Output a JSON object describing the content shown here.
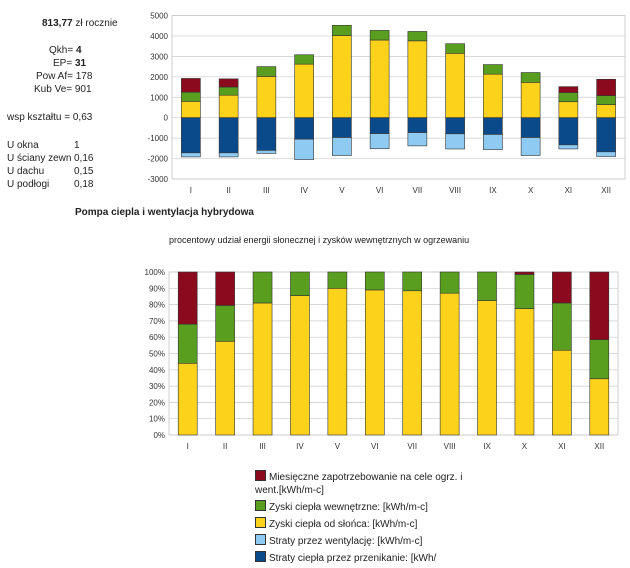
{
  "info": {
    "cost_value": "813,77",
    "cost_unit": "zł rocznie",
    "qkh_label": "Qkh=",
    "qkh_value": "4",
    "ep_label": "EP=",
    "ep_value": "31",
    "pow_label": "Pow Af=",
    "pow_value": "178",
    "kub_label": "Kub Ve=",
    "kub_value": "901",
    "wsp_label": "wsp kształtu =",
    "wsp_value": "0,63",
    "u_values": [
      {
        "label": "U okna",
        "value": "1"
      },
      {
        "label": "U ściany zewn",
        "value": "0,16"
      },
      {
        "label": "U dachu",
        "value": "0,15"
      },
      {
        "label": "U podłogi",
        "value": "0,18"
      }
    ]
  },
  "section_title": "Pompa ciepla i wentylacja hybrydowa",
  "colors": {
    "demand": "#8b0a1e",
    "internal": "#5a9e1f",
    "solar": "#fcd21b",
    "ventilation": "#8ecaf2",
    "transmission": "#0a4a8a"
  },
  "chart_data": [
    {
      "type": "bar",
      "stacked": true,
      "title": "",
      "categories": [
        "I",
        "II",
        "III",
        "IV",
        "V",
        "VI",
        "VII",
        "VIII",
        "IX",
        "X",
        "XI",
        "XII"
      ],
      "ylim": [
        -3000,
        5000
      ],
      "yticks": [
        "5000",
        "4000",
        "3000",
        "2000",
        "1000",
        "0",
        "-1000",
        "-2000",
        "-3000"
      ],
      "grid": true,
      "series": [
        {
          "key": "solar",
          "values": [
            800,
            1100,
            2020,
            2620,
            4020,
            3800,
            3760,
            3150,
            2130,
            1730,
            780,
            640
          ]
        },
        {
          "key": "internal",
          "values": [
            450,
            400,
            480,
            460,
            500,
            470,
            460,
            470,
            470,
            480,
            450,
            440
          ]
        },
        {
          "key": "demand",
          "values": [
            670,
            400,
            0,
            0,
            0,
            0,
            0,
            0,
            0,
            0,
            290,
            800
          ]
        },
        {
          "key": "transmission",
          "values": [
            -1720,
            -1720,
            -1600,
            -1050,
            -970,
            -780,
            -730,
            -790,
            -820,
            -970,
            -1330,
            -1670
          ]
        },
        {
          "key": "ventilation",
          "values": [
            -200,
            -200,
            -150,
            -1000,
            -880,
            -740,
            -650,
            -740,
            -740,
            -880,
            -200,
            -230
          ]
        }
      ]
    },
    {
      "type": "bar",
      "stacked": true,
      "percent": true,
      "title": "procentowy udział energii słonecznej i zysków wewnętrznych w ogrzewaniu",
      "categories": [
        "I",
        "II",
        "III",
        "IV",
        "V",
        "VI",
        "VII",
        "VIII",
        "IX",
        "X",
        "XI",
        "XII"
      ],
      "ylim": [
        0,
        100
      ],
      "yticks": [
        "100%",
        "90%",
        "80%",
        "70%",
        "60%",
        "50%",
        "40%",
        "30%",
        "20%",
        "10%",
        "0%"
      ],
      "grid": true,
      "series": [
        {
          "key": "solar",
          "values": [
            44,
            57.5,
            81,
            85.5,
            90,
            89,
            88.5,
            87,
            82.5,
            77.5,
            52,
            34.5
          ]
        },
        {
          "key": "internal",
          "values": [
            24,
            22,
            19,
            14.5,
            10,
            11,
            11.5,
            13,
            17.5,
            21,
            29,
            24
          ]
        },
        {
          "key": "demand",
          "values": [
            32,
            20.5,
            0,
            0,
            0,
            0,
            0,
            0,
            0,
            1.5,
            19,
            41.5
          ]
        }
      ],
      "legend_placement": "bottom",
      "legend": [
        {
          "key": "demand",
          "label": "Miesięczne zapotrzebowanie na cele ogrz. i went.[kWh/m-c]"
        },
        {
          "key": "internal",
          "label": "Zyski ciepła wewnętrzne: [kWh/m-c]"
        },
        {
          "key": "solar",
          "label": "Zyski ciepła od słońca: [kWh/m-c]"
        },
        {
          "key": "ventilation",
          "label": "Straty przez wentylację: [kWh/m-c]"
        },
        {
          "key": "transmission",
          "label": "Straty  ciepła przez przenikanie: [kWh/"
        }
      ]
    }
  ]
}
